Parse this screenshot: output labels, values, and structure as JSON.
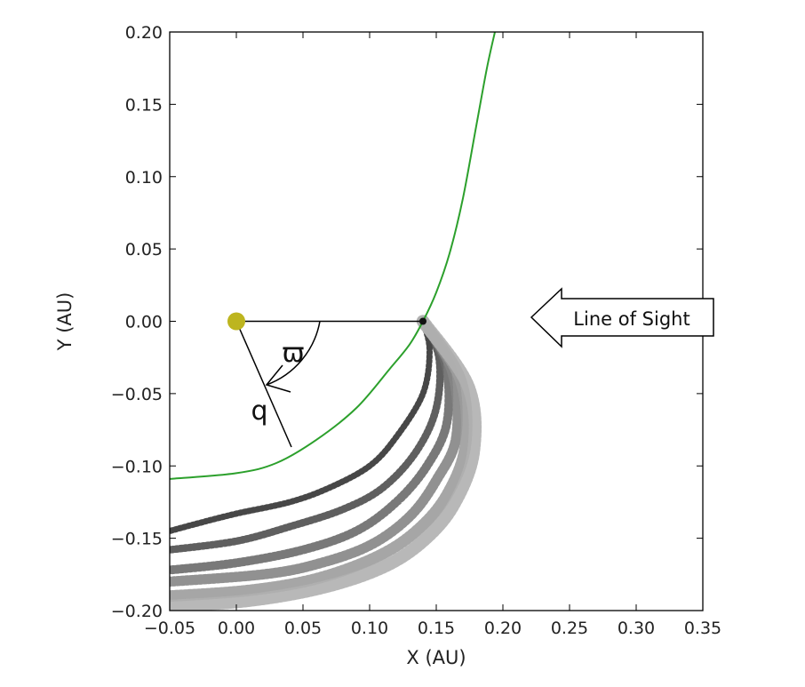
{
  "chart_data": {
    "type": "scatter",
    "title": "",
    "xlabel": "X (AU)",
    "ylabel": "Y (AU)",
    "xlim": [
      -0.05,
      0.35
    ],
    "ylim": [
      -0.2,
      0.2
    ],
    "x_ticks": [
      -0.05,
      0.0,
      0.05,
      0.1,
      0.15,
      0.2,
      0.25,
      0.3,
      0.35
    ],
    "x_tick_labels": [
      "−0.05",
      "0.00",
      "0.05",
      "0.10",
      "0.15",
      "0.20",
      "0.25",
      "0.30",
      "0.35"
    ],
    "y_ticks": [
      -0.2,
      -0.15,
      -0.1,
      -0.05,
      0.0,
      0.05,
      0.1,
      0.15,
      0.2
    ],
    "y_tick_labels": [
      "−0.20",
      "−0.15",
      "−0.10",
      "−0.05",
      "0.00",
      "0.05",
      "0.10",
      "0.15",
      "0.20"
    ],
    "grid": false,
    "sun": {
      "x": 0.0,
      "y": 0.0,
      "color": "#bdb51f"
    },
    "perihelion": {
      "x": 0.14,
      "y": 0.0
    },
    "orbit": {
      "color": "#2ca02c",
      "points": [
        [
          -0.05,
          -0.109
        ],
        [
          0.0,
          -0.105
        ],
        [
          0.03,
          -0.098
        ],
        [
          0.06,
          -0.082
        ],
        [
          0.09,
          -0.06
        ],
        [
          0.115,
          -0.033
        ],
        [
          0.13,
          -0.016
        ],
        [
          0.14,
          0.0
        ],
        [
          0.15,
          0.02
        ],
        [
          0.16,
          0.047
        ],
        [
          0.17,
          0.085
        ],
        [
          0.18,
          0.135
        ],
        [
          0.188,
          0.175
        ],
        [
          0.194,
          0.2
        ]
      ]
    },
    "streams": [
      {
        "color": "#333333",
        "points": [
          [
            0.14,
            0.0
          ],
          [
            0.145,
            -0.02
          ],
          [
            0.14,
            -0.05
          ],
          [
            0.12,
            -0.08
          ],
          [
            0.1,
            -0.1
          ],
          [
            0.07,
            -0.115
          ],
          [
            0.04,
            -0.125
          ],
          [
            0.0,
            -0.133
          ],
          [
            -0.03,
            -0.14
          ],
          [
            -0.05,
            -0.145
          ]
        ]
      },
      {
        "color": "#4e4e4e",
        "points": [
          [
            0.14,
            0.0
          ],
          [
            0.152,
            -0.025
          ],
          [
            0.15,
            -0.06
          ],
          [
            0.135,
            -0.09
          ],
          [
            0.11,
            -0.115
          ],
          [
            0.08,
            -0.13
          ],
          [
            0.04,
            -0.142
          ],
          [
            0.0,
            -0.152
          ],
          [
            -0.05,
            -0.158
          ]
        ]
      },
      {
        "color": "#6a6a6a",
        "points": [
          [
            0.14,
            0.0
          ],
          [
            0.157,
            -0.03
          ],
          [
            0.158,
            -0.07
          ],
          [
            0.143,
            -0.1
          ],
          [
            0.12,
            -0.125
          ],
          [
            0.09,
            -0.145
          ],
          [
            0.05,
            -0.158
          ],
          [
            0.0,
            -0.167
          ],
          [
            -0.05,
            -0.172
          ]
        ]
      },
      {
        "color": "#858585",
        "points": [
          [
            0.14,
            0.0
          ],
          [
            0.162,
            -0.035
          ],
          [
            0.165,
            -0.08
          ],
          [
            0.15,
            -0.11
          ],
          [
            0.13,
            -0.135
          ],
          [
            0.1,
            -0.155
          ],
          [
            0.06,
            -0.168
          ],
          [
            0.02,
            -0.175
          ],
          [
            -0.05,
            -0.18
          ]
        ]
      },
      {
        "color": "#9c9c9c",
        "points": [
          [
            0.14,
            0.0
          ],
          [
            0.168,
            -0.04
          ],
          [
            0.172,
            -0.085
          ],
          [
            0.158,
            -0.12
          ],
          [
            0.135,
            -0.145
          ],
          [
            0.105,
            -0.163
          ],
          [
            0.06,
            -0.178
          ],
          [
            0.01,
            -0.186
          ],
          [
            -0.05,
            -0.19
          ]
        ]
      },
      {
        "color": "#b0b0b0",
        "points": [
          [
            0.14,
            0.0
          ],
          [
            0.174,
            -0.045
          ],
          [
            0.178,
            -0.09
          ],
          [
            0.163,
            -0.127
          ],
          [
            0.14,
            -0.152
          ],
          [
            0.11,
            -0.17
          ],
          [
            0.065,
            -0.184
          ],
          [
            0.01,
            -0.193
          ],
          [
            -0.05,
            -0.197
          ]
        ]
      }
    ],
    "annotations": {
      "angle_symbol": "ϖ",
      "q_label": "q",
      "line_of_sight": "Line of Sight"
    }
  }
}
